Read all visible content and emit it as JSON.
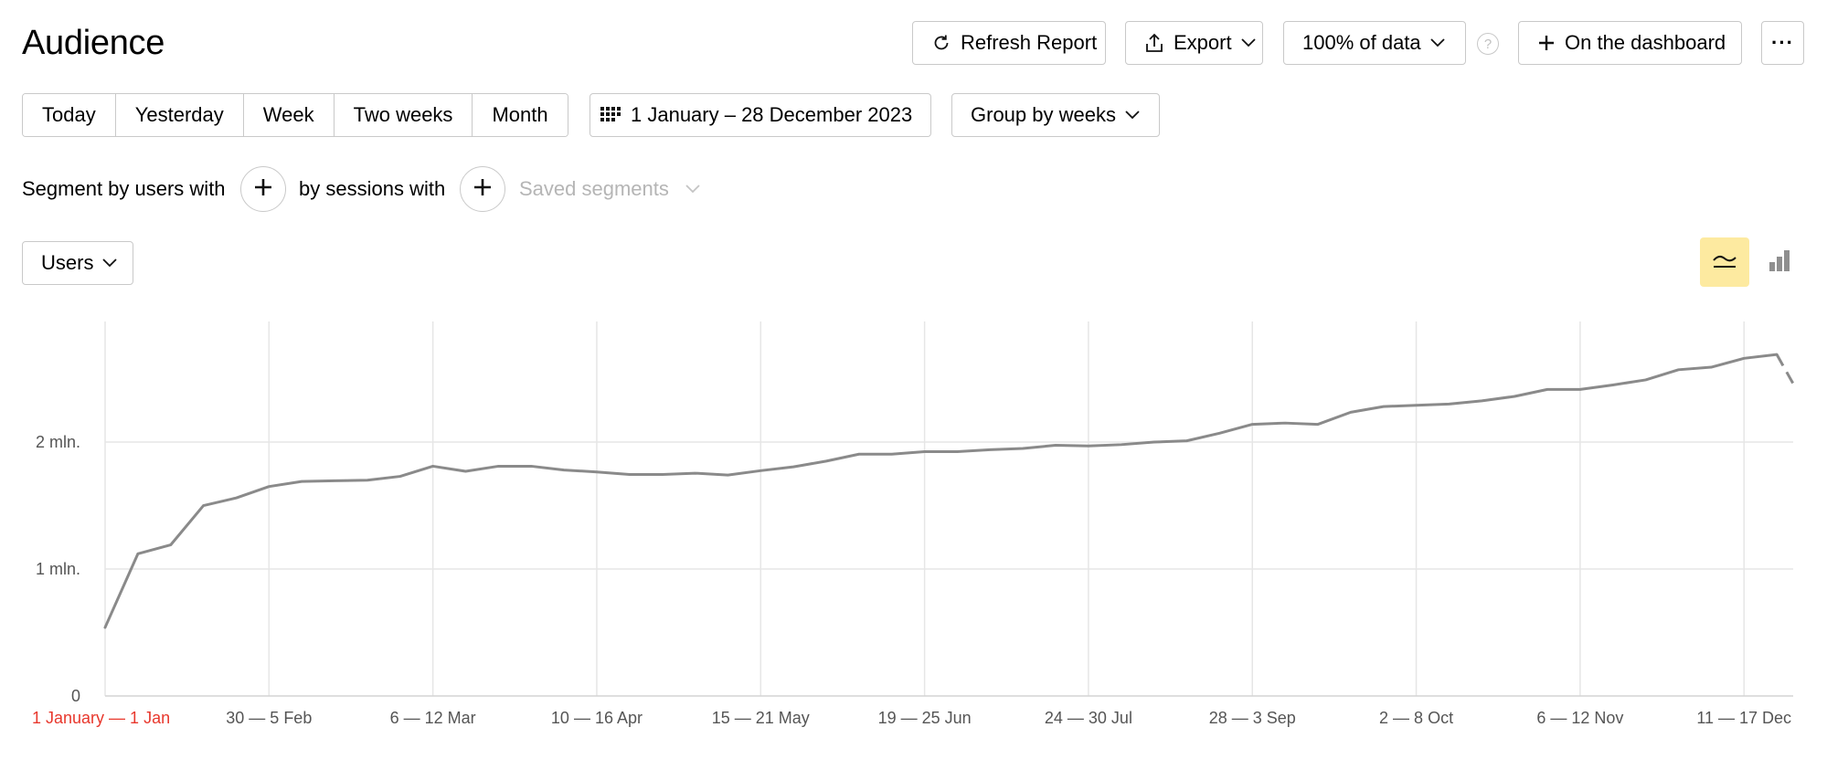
{
  "header": {
    "title": "Audience",
    "refresh_label": "Refresh Report",
    "export_label": "Export",
    "sampling_label": "100% of data",
    "help_label": "?",
    "dashboard_label": "On the dashboard",
    "more_label": "···"
  },
  "period": {
    "presets": [
      "Today",
      "Yesterday",
      "Week",
      "Two weeks",
      "Month"
    ],
    "date_range": "1 January – 28 December 2023",
    "group_label": "Group by weeks"
  },
  "segments": {
    "users_label": "Segment by users with",
    "sessions_label": "by sessions with",
    "saved_label": "Saved segments"
  },
  "metric": {
    "selected": "Users"
  },
  "colors": {
    "line": "#8a8a8a",
    "grid": "#e6e6e6",
    "first_tick": "#e8372c",
    "active_toggle": "#fdeaa0"
  },
  "icons": [
    "refresh-icon",
    "export-icon",
    "chevron-down-icon",
    "plus-icon",
    "calendar-icon",
    "line-chart-icon",
    "bar-chart-icon",
    "help-icon"
  ],
  "chart_data": {
    "type": "line",
    "y_ticks": [
      {
        "value": 0,
        "label": "0"
      },
      {
        "value": 1000000,
        "label": "1 mln."
      },
      {
        "value": 2000000,
        "label": "2 mln."
      }
    ],
    "ylim": [
      0,
      2950000
    ],
    "x_tick_labels": [
      {
        "index": 0,
        "label": "1 January — 1 Jan"
      },
      {
        "index": 5,
        "label": "30 — 5 Feb"
      },
      {
        "index": 10,
        "label": "6 — 12 Mar"
      },
      {
        "index": 15,
        "label": "10 — 16 Apr"
      },
      {
        "index": 20,
        "label": "15 — 21 May"
      },
      {
        "index": 25,
        "label": "19 — 25 Jun"
      },
      {
        "index": 30,
        "label": "24 — 30 Jul"
      },
      {
        "index": 35,
        "label": "28 — 3 Sep"
      },
      {
        "index": 40,
        "label": "2 — 8 Oct"
      },
      {
        "index": 45,
        "label": "6 — 12 Nov"
      },
      {
        "index": 50,
        "label": "11 — 17 Dec"
      }
    ],
    "series": [
      {
        "values": [
          540000,
          1120000,
          1190000,
          1500000,
          1560000,
          1650000,
          1690000,
          1695000,
          1700000,
          1730000,
          1810000,
          1770000,
          1810000,
          1810000,
          1780000,
          1765000,
          1745000,
          1745000,
          1755000,
          1740000,
          1775000,
          1805000,
          1850000,
          1905000,
          1905000,
          1925000,
          1925000,
          1940000,
          1950000,
          1975000,
          1970000,
          1980000,
          2000000,
          2010000,
          2070000,
          2140000,
          2150000,
          2140000,
          2235000,
          2280000,
          2290000,
          2300000,
          2325000,
          2360000,
          2415000,
          2415000,
          2450000,
          2490000,
          2570000,
          2590000,
          2660000,
          2690000,
          2230000
        ],
        "partial_last_segment": true
      }
    ],
    "grid": true
  }
}
